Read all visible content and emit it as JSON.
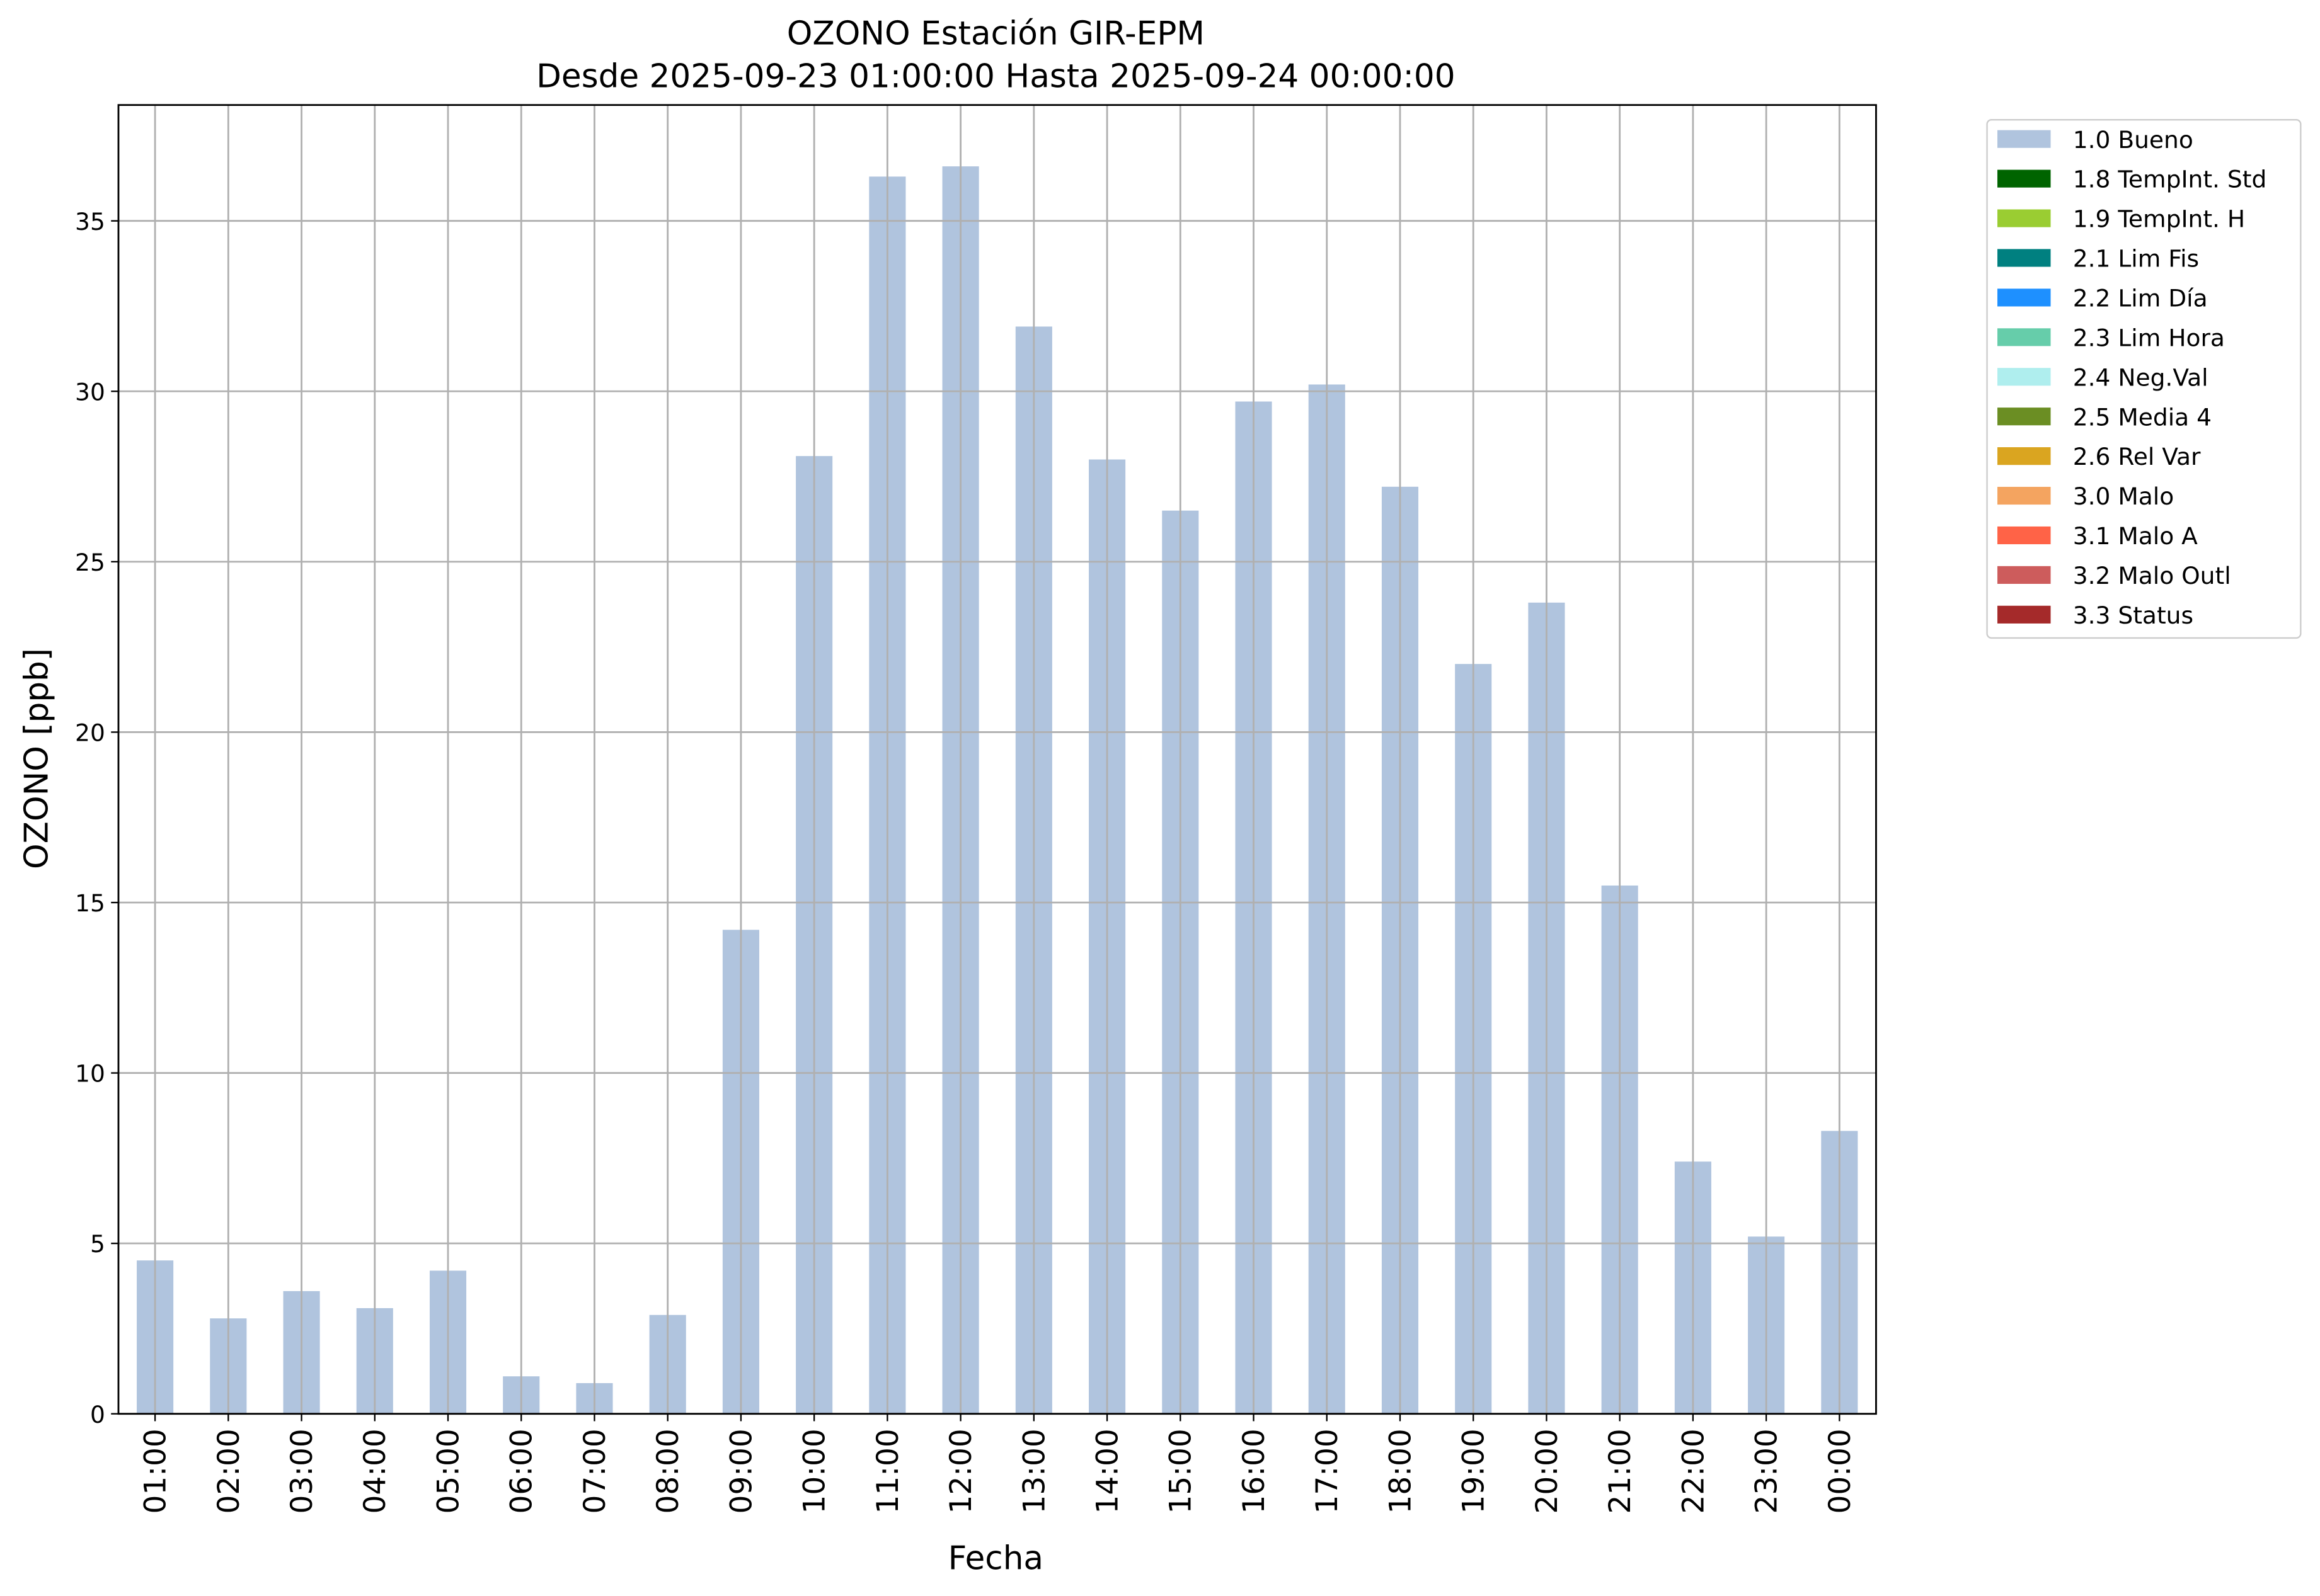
{
  "chart_data": {
    "type": "bar",
    "title": "OZONO Estación GIR-EPM",
    "subtitle": "Desde 2025-09-23 01:00:00 Hasta 2025-09-24 00:00:00",
    "x_label": "Fecha",
    "y_label": "OZONO [ppb]",
    "categories": [
      "01:00",
      "02:00",
      "03:00",
      "04:00",
      "05:00",
      "06:00",
      "07:00",
      "08:00",
      "09:00",
      "10:00",
      "11:00",
      "12:00",
      "13:00",
      "14:00",
      "15:00",
      "16:00",
      "17:00",
      "18:00",
      "19:00",
      "20:00",
      "21:00",
      "22:00",
      "23:00",
      "00:00"
    ],
    "series": [
      {
        "name": "1.0 Bueno",
        "color": "#b0c4de",
        "values": [
          4.5,
          2.8,
          3.6,
          3.1,
          4.2,
          1.1,
          0.9,
          2.9,
          14.2,
          28.1,
          36.3,
          36.6,
          31.9,
          28.0,
          26.5,
          29.7,
          30.2,
          27.2,
          22.0,
          23.8,
          15.5,
          7.4,
          5.2,
          8.3
        ]
      },
      {
        "name": "1.8 TempInt. Std",
        "color": "#006400"
      },
      {
        "name": "1.9 TempInt. H",
        "color": "#9acd32"
      },
      {
        "name": "2.1 Lim Fis",
        "color": "#008080"
      },
      {
        "name": "2.2 Lim Día",
        "color": "#1e90ff"
      },
      {
        "name": "2.3 Lim Hora",
        "color": "#66cdaa"
      },
      {
        "name": "2.4 Neg.Val",
        "color": "#afeeee"
      },
      {
        "name": "2.5 Media 4",
        "color": "#6b8e23"
      },
      {
        "name": "2.6 Rel Var",
        "color": "#daa520"
      },
      {
        "name": "3.0 Malo",
        "color": "#f4a460"
      },
      {
        "name": "3.1 Malo A",
        "color": "#ff6347"
      },
      {
        "name": "3.2 Malo Outl",
        "color": "#cd5c5c"
      },
      {
        "name": "3.3 Status",
        "color": "#a52a2a"
      }
    ],
    "ylim": [
      0,
      38.4
    ],
    "yticks": [
      0,
      5,
      10,
      15,
      20,
      25,
      30,
      35
    ],
    "grid": true,
    "legend": "outside-upper-right"
  }
}
